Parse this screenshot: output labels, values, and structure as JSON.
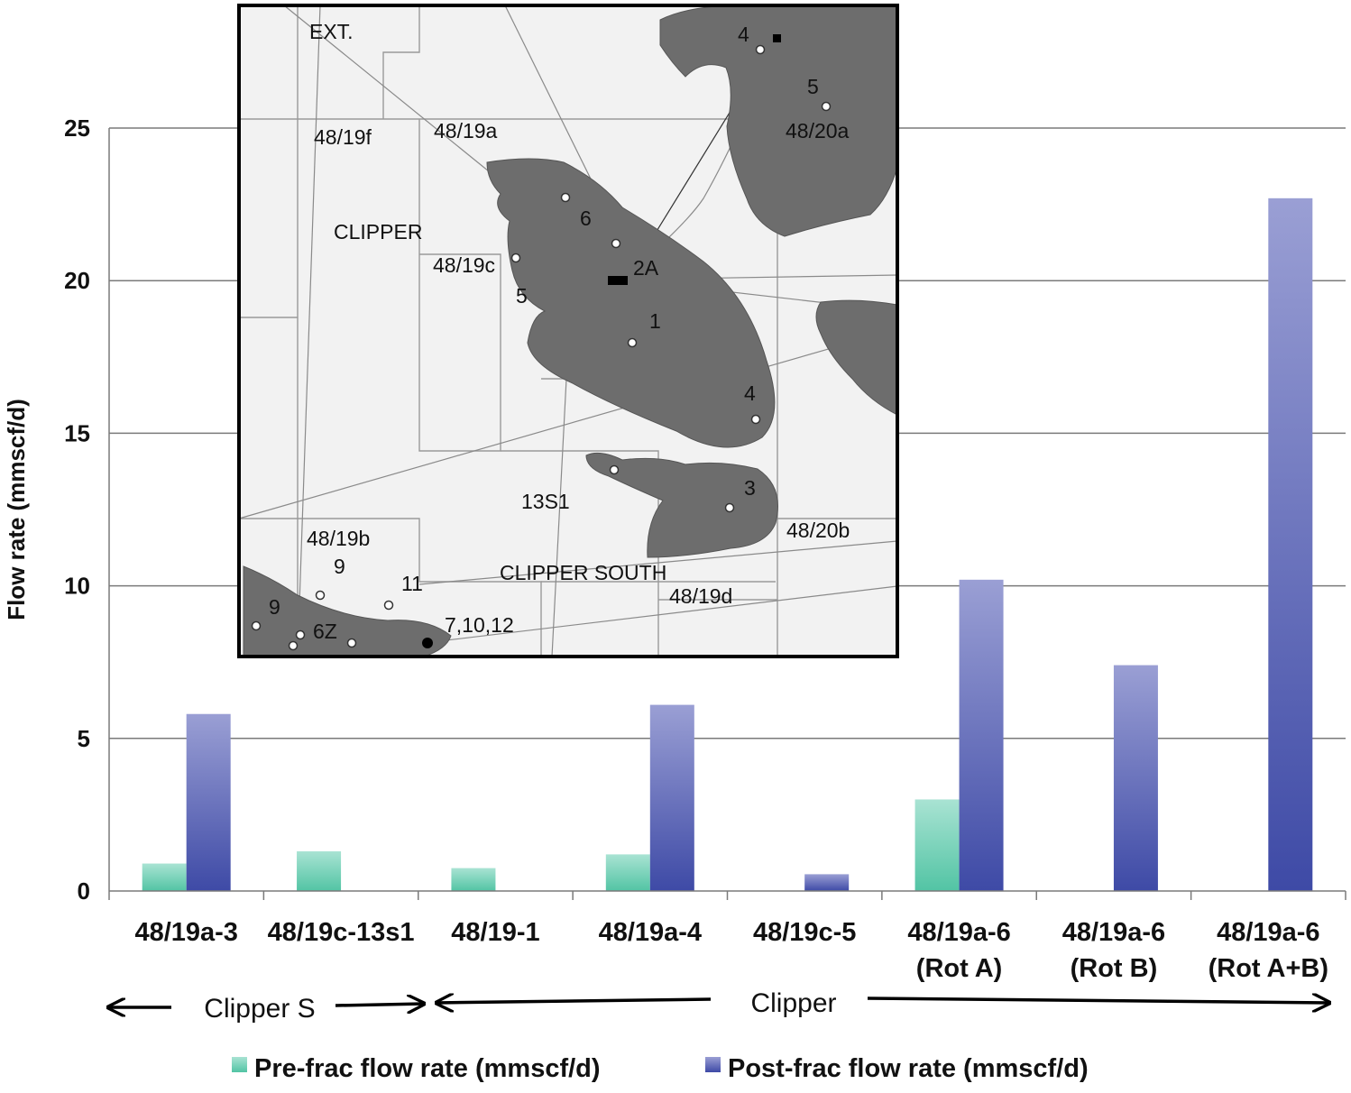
{
  "chart_data": {
    "type": "bar",
    "ylabel": "Flow rate (mmscf/d)",
    "ylim": [
      0,
      25
    ],
    "yticks": [
      0,
      5,
      10,
      15,
      20,
      25
    ],
    "grid": true,
    "legend_position": "bottom",
    "categories": [
      [
        "48/19a-3"
      ],
      [
        "48/19c-13s1"
      ],
      [
        "48/19-1"
      ],
      [
        "48/19a-4"
      ],
      [
        "48/19c-5"
      ],
      [
        "48/19a-6",
        "(Rot A)"
      ],
      [
        "48/19a-6",
        "(Rot B)"
      ],
      [
        "48/19a-6",
        "(Rot A+B)"
      ]
    ],
    "series": [
      {
        "name": "Pre-frac flow rate (mmscf/d)",
        "color": "#6fd0b4",
        "values": [
          0.9,
          1.3,
          0.75,
          1.2,
          null,
          3.0,
          null,
          null
        ]
      },
      {
        "name": "Post-frac flow rate (mmscf/d)",
        "color": "#4a55ad",
        "values": [
          5.8,
          null,
          null,
          6.1,
          0.55,
          10.2,
          7.4,
          22.7
        ]
      }
    ],
    "groups": [
      {
        "label": "Clipper S"
      },
      {
        "label": "Clipper"
      }
    ]
  },
  "inset_map": {
    "labels": [
      "EXT.",
      "4",
      "5",
      "48/20a",
      "48/19f",
      "48/19a",
      "CLIPPER",
      "6",
      "48/19c",
      "2A",
      "5",
      "1",
      "4",
      "13S1",
      "3",
      "48/20b",
      "48/19b",
      "9",
      "CLIPPER SOUTH",
      "11",
      "48/19d",
      "9",
      "6Z",
      "7,10,12"
    ]
  }
}
